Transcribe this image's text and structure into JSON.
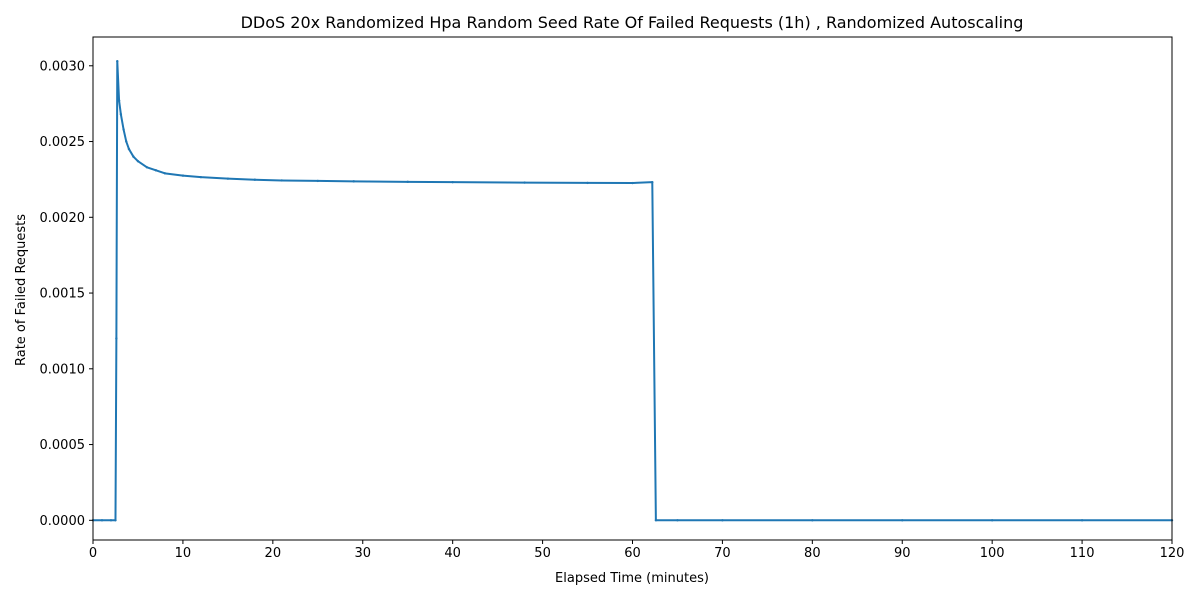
{
  "chart_data": {
    "type": "line",
    "title": "DDoS 20x Randomized Hpa Random Seed Rate Of Failed Requests (1h) , Randomized Autoscaling",
    "xlabel": "Elapsed Time (minutes)",
    "ylabel": "Rate of Failed Requests",
    "xlim": [
      0,
      120
    ],
    "ylim": [
      -0.00013,
      0.00319
    ],
    "xticks": [
      0,
      10,
      20,
      30,
      40,
      50,
      60,
      70,
      80,
      90,
      100,
      110,
      120
    ],
    "xtick_labels": [
      "0",
      "10",
      "20",
      "30",
      "40",
      "50",
      "60",
      "70",
      "80",
      "90",
      "100",
      "110",
      "120"
    ],
    "yticks": [
      0.0,
      0.0005,
      0.001,
      0.0015,
      0.002,
      0.0025,
      0.003
    ],
    "ytick_labels": [
      "0.0000",
      "0.0005",
      "0.0010",
      "0.0015",
      "0.0020",
      "0.0025",
      "0.0030"
    ],
    "grid": false,
    "legend": "none",
    "series_color": "#1f77b4",
    "series": [
      {
        "x": [
          0,
          1,
          2,
          2.5,
          2.6,
          2.7,
          2.9,
          3.1,
          3.4,
          3.7,
          4.0,
          4.5,
          5.0,
          6.0,
          7.0,
          8.0,
          10.0,
          12.0,
          15.0,
          18.0,
          21.0,
          25.0,
          29.0,
          35.0,
          40.0,
          48.0,
          55.0,
          60.0,
          62.2,
          62.6,
          65.0,
          70.0,
          80.0,
          90.0,
          100.0,
          110.0,
          120.0
        ],
        "y": [
          0,
          0,
          0,
          0,
          0.0012,
          0.00303,
          0.00277,
          0.00268,
          0.00258,
          0.0025,
          0.00245,
          0.0024,
          0.00237,
          0.00233,
          0.00231,
          0.00229,
          0.002275,
          0.002265,
          0.002255,
          0.002248,
          0.002243,
          0.00224,
          0.002237,
          0.002234,
          0.002232,
          0.002229,
          0.002227,
          0.002226,
          0.002232,
          0,
          0,
          0,
          0,
          0,
          0,
          0,
          0
        ]
      }
    ]
  }
}
